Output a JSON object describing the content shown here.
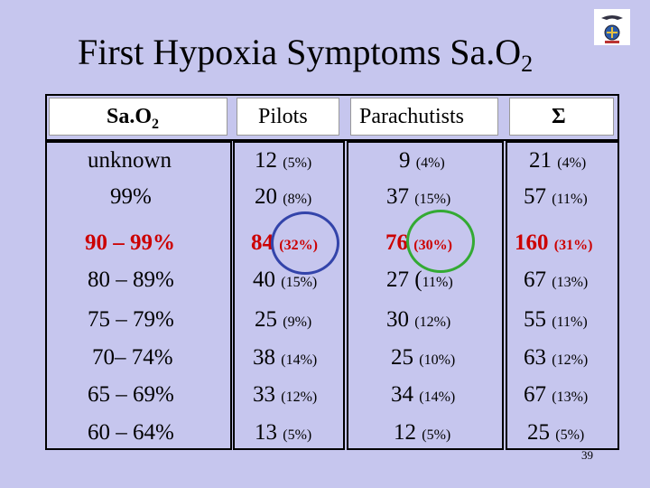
{
  "title": {
    "text": "First Hypoxia Symptoms Sa.O",
    "sub": "2"
  },
  "headers": {
    "sao2": "Sa.O",
    "sao2_sub": "2",
    "pilots": "Pilots",
    "parachutists": "Parachutists",
    "sigma": "Σ"
  },
  "rows": [
    {
      "label": "unknown",
      "pilots": "12 ",
      "pilots_pct": "(5%)",
      "para": "9 ",
      "para_pct": "(4%)",
      "sum": "21 ",
      "sum_pct": "(4%)"
    },
    {
      "label": "99%",
      "pilots": "20 ",
      "pilots_pct": "(8%)",
      "para": "37 ",
      "para_pct": "(15%)",
      "sum": "57 ",
      "sum_pct": "(11%)"
    },
    {
      "label": "90 – 99%",
      "pilots": "84 ",
      "pilots_pct": "(32%)",
      "para": "76 ",
      "para_pct": "(30%)",
      "sum": "160 ",
      "sum_pct": "(31%)"
    },
    {
      "label": "80 – 89%",
      "pilots": "40 ",
      "pilots_pct": "(15%)",
      "para": "27 (",
      "para_pct": "11%)",
      "sum": "67 ",
      "sum_pct": "(13%)"
    },
    {
      "label": "75 – 79%",
      "pilots": "25 ",
      "pilots_pct": "(9%)",
      "para": "30 ",
      "para_pct": "(12%)",
      "sum": "55 ",
      "sum_pct": "(11%)"
    },
    {
      "label": "70– 74%",
      "pilots": "38 ",
      "pilots_pct": "(14%)",
      "para": "25 ",
      "para_pct": "(10%)",
      "sum": "63 ",
      "sum_pct": "(12%)"
    },
    {
      "label": "65 – 69%",
      "pilots": "33 ",
      "pilots_pct": "(12%)",
      "para": "34 ",
      "para_pct": "(14%)",
      "sum": "67 ",
      "sum_pct": "(13%)"
    },
    {
      "label": "60 – 64%",
      "pilots": "13 ",
      "pilots_pct": "(5%)",
      "para": "12 ",
      "para_pct": "(5%)",
      "sum": "25 ",
      "sum_pct": "(5%)"
    }
  ],
  "highlight_colors": {
    "pilots": "#3344aa",
    "parachutists": "#33aa33",
    "emphasis_text": "#cc0000"
  },
  "page_number": "39"
}
